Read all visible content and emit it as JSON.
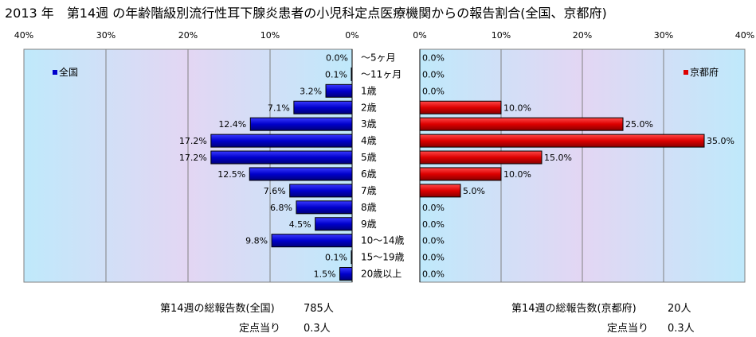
{
  "title": "2013 年　第14週 の年齢階級別流行性耳下腺炎患者の小児科定点医療機関からの報告割合(全国、京都府)",
  "categories": [
    "～5ヶ月",
    "～11ヶ月",
    "1歳",
    "2歳",
    "3歳",
    "4歳",
    "5歳",
    "6歳",
    "7歳",
    "8歳",
    "9歳",
    "10～14歳",
    "15～19歳",
    "20歳以上"
  ],
  "chart_data": [
    {
      "type": "bar",
      "orientation": "horizontal",
      "direction": "right-to-left",
      "series": [
        {
          "name": "全国",
          "color": "#0000cc",
          "values": [
            0.0,
            0.1,
            3.2,
            7.1,
            12.4,
            17.2,
            17.2,
            12.5,
            7.6,
            6.8,
            4.5,
            9.8,
            0.1,
            1.5
          ],
          "labels": [
            "0.0%",
            "0.1%",
            "3.2%",
            "7.1%",
            "12.4%",
            "17.2%",
            "17.2%",
            "12.5%",
            "7.6%",
            "6.8%",
            "4.5%",
            "9.8%",
            "0.1%",
            "1.5%"
          ]
        }
      ],
      "axis_ticks": [
        "40%",
        "30%",
        "20%",
        "10%",
        "0%"
      ],
      "xlim": [
        0,
        40
      ],
      "grid": true,
      "legend": "top-left"
    },
    {
      "type": "bar",
      "orientation": "horizontal",
      "direction": "left-to-right",
      "series": [
        {
          "name": "京都府",
          "color": "#dd0000",
          "values": [
            0.0,
            0.0,
            0.0,
            10.0,
            25.0,
            35.0,
            15.0,
            10.0,
            5.0,
            0.0,
            0.0,
            0.0,
            0.0,
            0.0
          ],
          "labels": [
            "0.0%",
            "0.0%",
            "0.0%",
            "10.0%",
            "25.0%",
            "35.0%",
            "15.0%",
            "10.0%",
            "5.0%",
            "0.0%",
            "0.0%",
            "0.0%",
            "0.0%",
            "0.0%"
          ]
        }
      ],
      "axis_ticks": [
        "0%",
        "10%",
        "20%",
        "30%",
        "40%"
      ],
      "xlim": [
        0,
        40
      ],
      "grid": true,
      "legend": "top-right"
    }
  ],
  "footer": {
    "national_total_label": "第14週の総報告数(全国)",
    "national_total_value": "785人",
    "national_per_label": "定点当り",
    "national_per_value": "0.3人",
    "kyoto_total_label": "第14週の総報告数(京都府)",
    "kyoto_total_value": "20人",
    "kyoto_per_label": "定点当り",
    "kyoto_per_value": "0.3人"
  }
}
